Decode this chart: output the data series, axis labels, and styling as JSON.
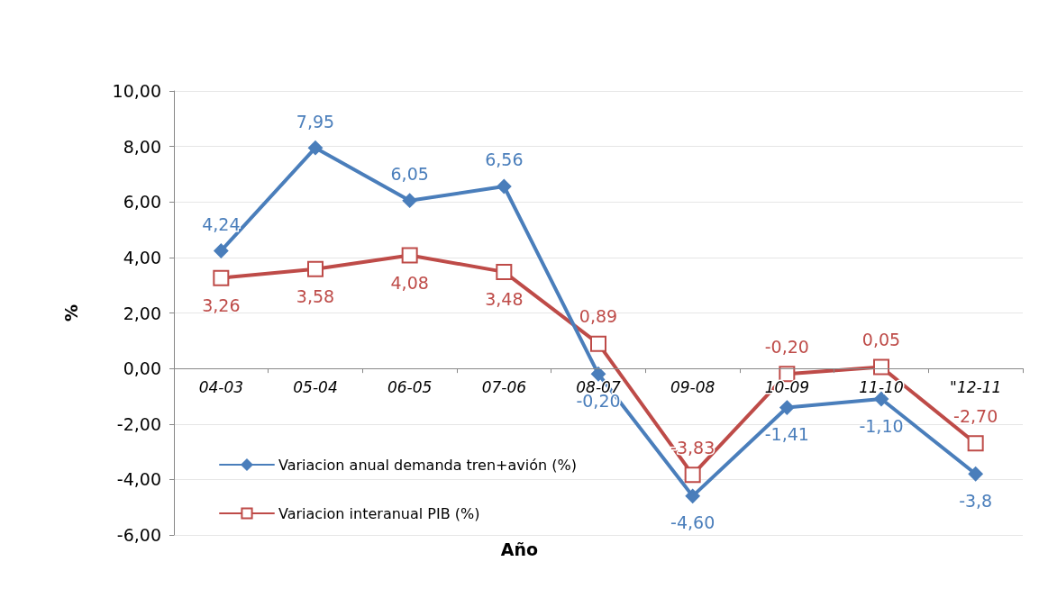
{
  "chart_data": {
    "type": "line",
    "xlabel": "Año",
    "ylabel": "%",
    "categories": [
      "04-03",
      "05-04",
      "06-05",
      "07-06",
      "08-07",
      "09-08",
      "10-09",
      "11-10",
      "\"12-11"
    ],
    "series": [
      {
        "name": "Variacion anual demanda tren+avión (%)",
        "color": "#4a7ebb",
        "marker": "diamond",
        "values": [
          4.24,
          7.95,
          6.05,
          6.56,
          -0.2,
          -4.6,
          -1.41,
          -1.1,
          -3.8
        ],
        "value_labels": [
          "4,24",
          "7,95",
          "6,05",
          "6,56",
          "-0,20",
          "-4,60",
          "-1,41",
          "-1,10",
          "-3,8"
        ]
      },
      {
        "name": "Variacion interanual PIB (%)",
        "color": "#be4b48",
        "marker": "square",
        "values": [
          3.26,
          3.58,
          4.08,
          3.48,
          0.89,
          -3.83,
          -0.2,
          0.05,
          -2.7
        ],
        "value_labels": [
          "3,26",
          "3,58",
          "4,08",
          "3,48",
          "0,89",
          "-3,83",
          "-0,20",
          "0,05",
          "-2,70"
        ]
      }
    ],
    "ylim": [
      -6,
      10
    ],
    "yticks": [
      {
        "value": -6,
        "label": "-6,00"
      },
      {
        "value": -4,
        "label": "-4,00"
      },
      {
        "value": -2,
        "label": "-2,00"
      },
      {
        "value": 0,
        "label": "0,00"
      },
      {
        "value": 2,
        "label": "2,00"
      },
      {
        "value": 4,
        "label": "4,00"
      },
      {
        "value": 6,
        "label": "6,00"
      },
      {
        "value": 8,
        "label": "8,00"
      },
      {
        "value": 10,
        "label": "10,00"
      }
    ],
    "grid": "y",
    "legend": "bottom left",
    "line_style": "solid"
  }
}
